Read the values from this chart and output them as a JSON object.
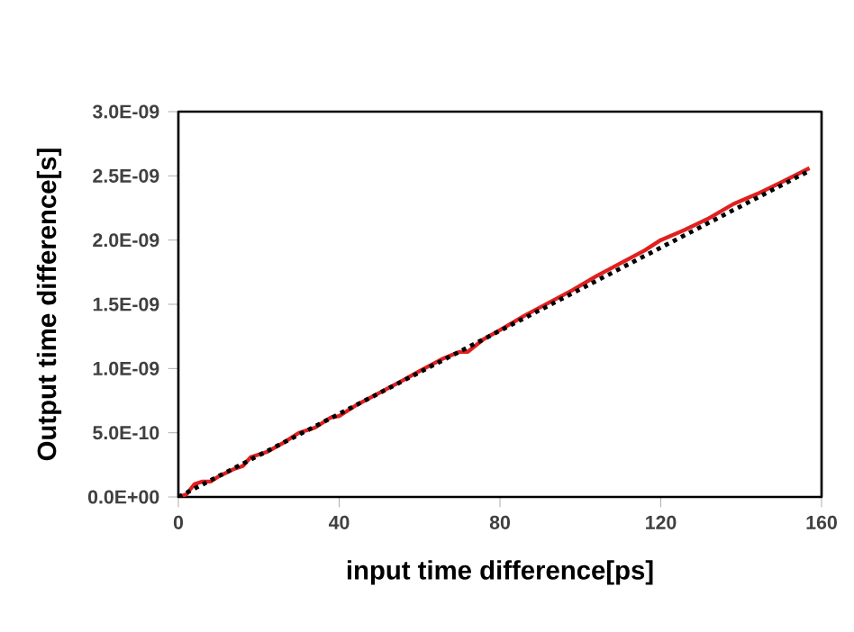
{
  "chart_data": {
    "type": "line",
    "xlabel": "input time difference[ps]",
    "ylabel": "Output time difference[s]",
    "xlim": [
      0,
      160
    ],
    "xticks": [
      0,
      40,
      80,
      120,
      160
    ],
    "ylim": [
      0,
      3e-09
    ],
    "yticks": [
      {
        "value": 0,
        "label": "0.0E+00"
      },
      {
        "value": 5e-10,
        "label": "5.0E-10"
      },
      {
        "value": 1e-09,
        "label": "1.0E-09"
      },
      {
        "value": 1.5e-09,
        "label": "1.5E-09"
      },
      {
        "value": 2e-09,
        "label": "2.0E-09"
      },
      {
        "value": 2.5e-09,
        "label": "2.5E-09"
      },
      {
        "value": 3e-09,
        "label": "3.0E-09"
      }
    ],
    "marker": "none",
    "series": [
      {
        "color": "#e02020",
        "line_style": "solid",
        "x": [
          0,
          2,
          4,
          6,
          8,
          10,
          14,
          16,
          18,
          22,
          26,
          30,
          34,
          38,
          40,
          44,
          50,
          56,
          60,
          66,
          70,
          72,
          76,
          80,
          86,
          92,
          98,
          104,
          110,
          116,
          120,
          126,
          132,
          138,
          144,
          150,
          157
        ],
        "values": [
          0,
          2e-11,
          1e-10,
          1.2e-10,
          1.2e-10,
          1.6e-10,
          2.2e-10,
          2.4e-10,
          3.1e-10,
          3.5e-10,
          4.2e-10,
          5e-10,
          5.4e-10,
          6.2e-10,
          6.3e-10,
          7.1e-10,
          8.1e-10,
          9.1e-10,
          9.8e-10,
          1.08e-09,
          1.13e-09,
          1.13e-09,
          1.23e-09,
          1.3e-09,
          1.41e-09,
          1.51e-09,
          1.61e-09,
          1.72e-09,
          1.82e-09,
          1.92e-09,
          2e-09,
          2.08e-09,
          2.17e-09,
          2.28e-09,
          2.36e-09,
          2.45e-09,
          2.56e-09
        ]
      },
      {
        "color": "#000000",
        "line_style": "dotted",
        "x": [
          0,
          157
        ],
        "values": [
          0,
          2.54e-09
        ]
      }
    ]
  }
}
